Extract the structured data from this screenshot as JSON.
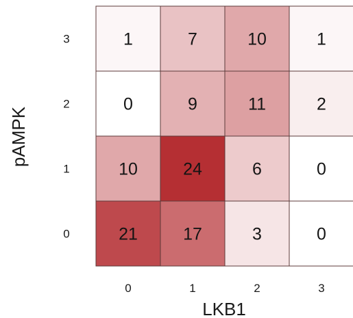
{
  "chart_data": {
    "type": "heatmap",
    "xlabel": "LKB1",
    "ylabel": "pAMPK",
    "x_categories": [
      "0",
      "1",
      "2",
      "3"
    ],
    "y_categories": [
      "0",
      "1",
      "2",
      "3"
    ],
    "values": [
      [
        21,
        17,
        3,
        0
      ],
      [
        10,
        24,
        6,
        0
      ],
      [
        0,
        9,
        11,
        2
      ],
      [
        1,
        7,
        10,
        1
      ]
    ],
    "color_scale": {
      "min_value": 0,
      "max_value": 24,
      "low_color": "#ffffff",
      "high_color": "#b52f33"
    },
    "cell_border_color": "#5c3a3a"
  }
}
